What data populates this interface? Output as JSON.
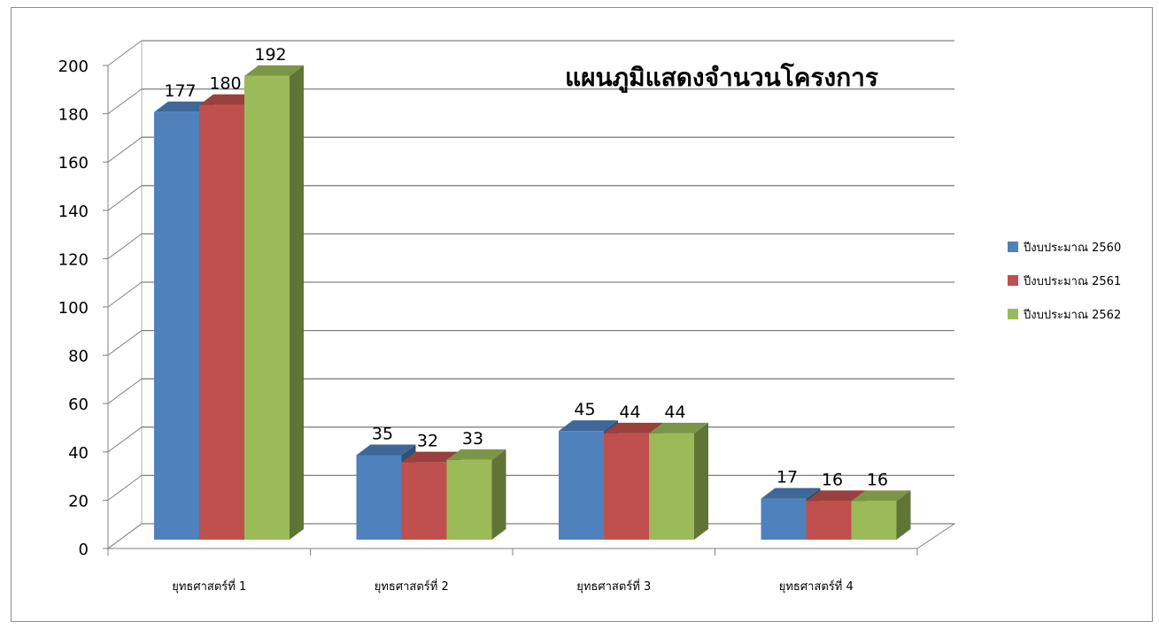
{
  "chart_data": {
    "type": "bar",
    "title": "แผนภูมิแสดงจำนวนโครงการ",
    "categories": [
      "ยุทธศาสตร์ที่ 1",
      "ยุทธศาสตร์ที่ 2",
      "ยุทธศาสตร์ที่ 3",
      "ยุทธศาสตร์ที่ 4"
    ],
    "series": [
      {
        "name": "ปีงบประมาณ 2560",
        "values": [
          177,
          35,
          45,
          17
        ],
        "color": "#4f81bd"
      },
      {
        "name": "ปีงบประมาณ 2561",
        "values": [
          180,
          32,
          44,
          16
        ],
        "color": "#c0504d"
      },
      {
        "name": "ปีงบประมาณ 2562",
        "values": [
          192,
          33,
          44,
          16
        ],
        "color": "#9bbb59"
      }
    ],
    "ylim": [
      0,
      200
    ],
    "yticks": [
      0,
      20,
      40,
      60,
      80,
      100,
      120,
      140,
      160,
      180,
      200
    ],
    "grid": true,
    "style_3d": true,
    "legend_position": "right"
  }
}
